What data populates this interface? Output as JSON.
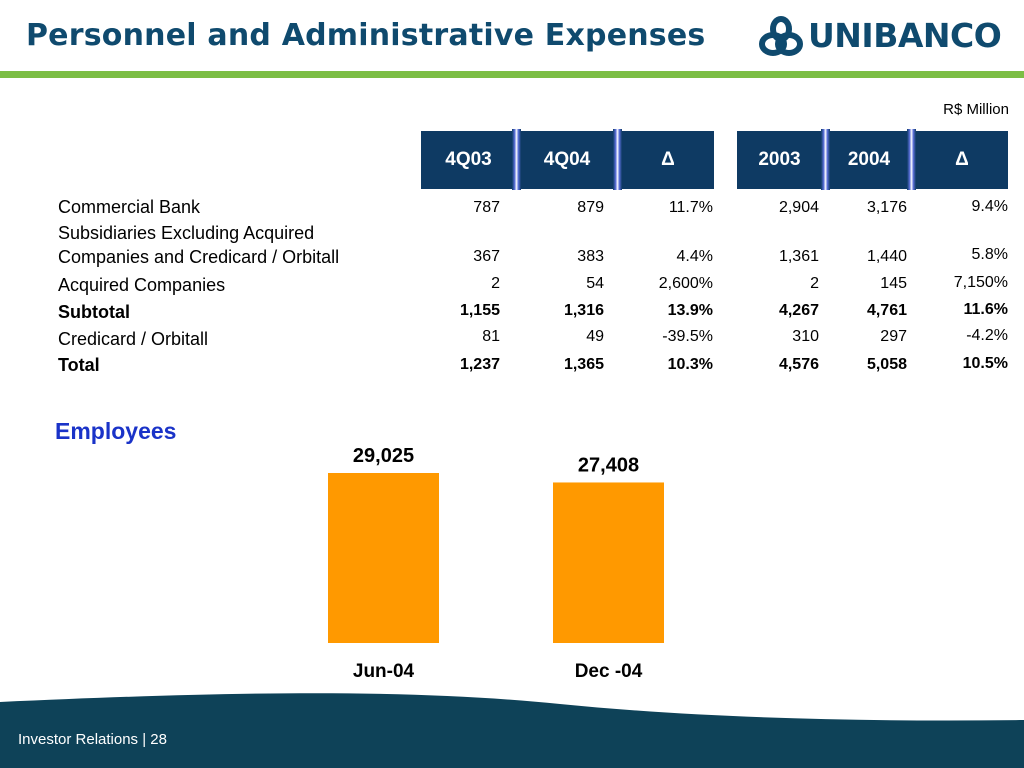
{
  "header": {
    "title": "Personnel and Administrative Expenses",
    "logo_text": "UNIBANCO"
  },
  "table": {
    "unit_label": "R$ Million",
    "columns": [
      "4Q03",
      "4Q04",
      "Δ",
      "2003",
      "2004",
      "Δ"
    ],
    "rows": [
      {
        "label": [
          "Commercial Bank"
        ],
        "values": [
          "787",
          "879",
          "11.7%",
          "2,904",
          "3,176",
          "9.4%"
        ],
        "bold": false
      },
      {
        "label": [
          "Subsidiaries Excluding Acquired",
          "Companies and Credicard / Orbitall"
        ],
        "values": [
          "367",
          "383",
          "4.4%",
          "1,361",
          "1,440",
          "5.8%"
        ],
        "bold": false
      },
      {
        "label": [
          "Acquired Companies"
        ],
        "values": [
          "2",
          "54",
          "2,600%",
          "2",
          "145",
          "7,150%"
        ],
        "bold": false
      },
      {
        "label": [
          "Subtotal"
        ],
        "values": [
          "1,155",
          "1,316",
          "13.9%",
          "4,267",
          "4,761",
          "11.6%"
        ],
        "bold": true
      },
      {
        "label": [
          "Credicard  / Orbitall"
        ],
        "values": [
          "81",
          "49",
          "-39.5%",
          "310",
          "297",
          "-4.2%"
        ],
        "bold": false
      },
      {
        "label": [
          "Total"
        ],
        "values": [
          "1,237",
          "1,365",
          "10.3%",
          "4,576",
          "5,058",
          "10.5%"
        ],
        "bold": true
      }
    ]
  },
  "chart_data": {
    "type": "bar",
    "title": "Employees",
    "categories": [
      "Jun-04",
      "Dec -04"
    ],
    "values": [
      29025,
      27408
    ],
    "data_labels": [
      "29,025",
      "27,408"
    ],
    "bar_color": "#ff9900"
  },
  "footer": {
    "label": "Investor Relations | 28"
  },
  "colors": {
    "brand_dark": "#0f4a6e",
    "header_cell": "#0e3a63",
    "accent_green": "#7cbe45",
    "employees_title": "#1a33c8"
  }
}
